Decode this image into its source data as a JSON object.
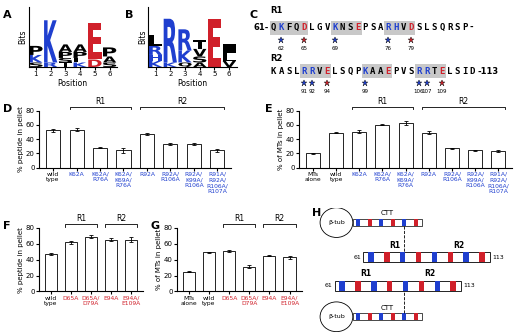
{
  "chart_data": [
    {
      "panel": "A",
      "type": "logo",
      "x_label": "Position",
      "y_label": "Bits",
      "x": [
        1,
        2,
        3,
        4,
        5,
        6
      ],
      "xlim": [
        0.5,
        6.5
      ],
      "xticks": [
        1,
        2,
        3,
        4,
        5,
        6
      ],
      "ylim": [
        0,
        4
      ],
      "tick_labels": "x",
      "stacks": [
        [
          {
            "letter": "P",
            "bits": 0.6
          },
          {
            "letter": "K",
            "bits": 0.5
          },
          {
            "letter": "S",
            "bits": 0.3
          }
        ],
        [
          {
            "letter": "K",
            "bits": 2.8
          },
          {
            "letter": "R",
            "bits": 0.3
          }
        ],
        [
          {
            "letter": "A",
            "bits": 0.5
          },
          {
            "letter": "P",
            "bits": 0.4
          },
          {
            "letter": "S",
            "bits": 0.3
          },
          {
            "letter": "T",
            "bits": 0.3
          }
        ],
        [
          {
            "letter": "A",
            "bits": 0.5
          },
          {
            "letter": "P",
            "bits": 0.4
          },
          {
            "letter": "L",
            "bits": 0.3
          },
          {
            "letter": "K",
            "bits": 0.3
          }
        ],
        [
          {
            "letter": "E",
            "bits": 2.4
          },
          {
            "letter": "D",
            "bits": 0.5
          }
        ],
        [
          {
            "letter": "P",
            "bits": 0.6
          },
          {
            "letter": "A",
            "bits": 0.4
          },
          {
            "letter": "S",
            "bits": 0.3
          }
        ]
      ]
    },
    {
      "panel": "B",
      "type": "logo",
      "x_label": "Position",
      "y_label": "Bits",
      "x": [
        1,
        2,
        3,
        4,
        5,
        6
      ],
      "xlim": [
        0.5,
        6.5
      ],
      "xticks": [
        1,
        2,
        3,
        4,
        5,
        6
      ],
      "ylim": [
        0,
        4
      ],
      "tick_labels": "x",
      "stacks": [
        [
          {
            "letter": "L",
            "bits": 0.7
          },
          {
            "letter": "R",
            "bits": 0.6
          },
          {
            "letter": "H",
            "bits": 0.4
          },
          {
            "letter": "K",
            "bits": 0.4
          }
        ],
        [
          {
            "letter": "R",
            "bits": 2.9
          },
          {
            "letter": "K",
            "bits": 0.3
          }
        ],
        [
          {
            "letter": "R",
            "bits": 1.4
          },
          {
            "letter": "K",
            "bits": 0.8
          },
          {
            "letter": "Q",
            "bits": 0.3
          }
        ],
        [
          {
            "letter": "T",
            "bits": 0.6
          },
          {
            "letter": "V",
            "bits": 0.5
          },
          {
            "letter": "S",
            "bits": 0.4
          },
          {
            "letter": "A",
            "bits": 0.3
          }
        ],
        [
          {
            "letter": "E",
            "bits": 3.2
          }
        ],
        [
          {
            "letter": "I",
            "bits": 0.6
          },
          {
            "letter": "L",
            "bits": 0.5
          },
          {
            "letter": "V",
            "bits": 0.4
          }
        ]
      ]
    },
    {
      "panel": "D",
      "type": "bar",
      "y_label": "% peptide in pellet",
      "color": "#ffffff",
      "categories": [
        "wild type",
        "K62A",
        "K62A/R76A",
        "K62A/K69A/R76A",
        "R92A",
        "R92A/R106A",
        "R92A/K99A/R106A",
        "R91A/R92A/R106A/R107A"
      ],
      "values": [
        52,
        53,
        28,
        24,
        47,
        33,
        33,
        24
      ],
      "errors": [
        2,
        2,
        1,
        3,
        1,
        1,
        1,
        2
      ],
      "ylim": [
        0,
        80
      ],
      "yticks": [
        0,
        20,
        40,
        60,
        80
      ],
      "brackets": [
        {
          "label": "R1",
          "from": "K62A",
          "to": "K62A/K69A/R76A"
        },
        {
          "label": "R2",
          "from": "R92A",
          "to": "R91A/R92A/R106A/R107A"
        }
      ]
    },
    {
      "panel": "E",
      "type": "bar",
      "y_label": "% of MTs in pellet",
      "color": "#ffffff",
      "categories": [
        "MTs alone",
        "wild type",
        "K62A",
        "K62A/R76A",
        "K62A/K69A/R76A",
        "R92A",
        "R92A/R106A",
        "R92A/K99A/R106A",
        "R91A/R92A/R106A/R107A"
      ],
      "values": [
        20,
        49,
        50,
        60,
        63,
        49,
        27,
        24,
        23
      ],
      "errors": [
        1,
        1,
        2,
        1,
        3,
        2,
        1,
        1,
        1
      ],
      "ylim": [
        0,
        80
      ],
      "yticks": [
        0,
        20,
        40,
        60,
        80
      ],
      "brackets": [
        {
          "label": "R1",
          "from": "K62A",
          "to": "K62A/K69A/R76A"
        },
        {
          "label": "R2",
          "from": "R92A",
          "to": "R91A/R92A/R106A/R107A"
        }
      ]
    },
    {
      "panel": "F",
      "type": "bar",
      "y_label": "% peptide in pellet",
      "color": "#ffffff",
      "categories": [
        "wild type",
        "D65A",
        "D65A/D79A",
        "E94A",
        "E94A/E109A"
      ],
      "values": [
        47,
        62,
        69,
        65,
        65
      ],
      "errors": [
        1,
        2,
        2,
        2,
        3
      ],
      "ylim": [
        0,
        80
      ],
      "yticks": [
        0,
        20,
        40,
        60,
        80
      ],
      "brackets": [
        {
          "label": "R1",
          "from": "D65A",
          "to": "D65A/D79A"
        },
        {
          "label": "R2",
          "from": "E94A",
          "to": "E94A/E109A"
        }
      ]
    },
    {
      "panel": "G",
      "type": "bar",
      "y_label": "% of MTs in pellet",
      "color": "#ffffff",
      "categories": [
        "MTs alone",
        "wild type",
        "D65A",
        "D65A/D79A",
        "E94A",
        "E94A/E109A"
      ],
      "values": [
        25,
        49,
        51,
        31,
        45,
        43
      ],
      "errors": [
        1,
        1,
        1,
        2,
        1,
        2
      ],
      "ylim": [
        0,
        80
      ],
      "yticks": [
        0,
        20,
        40,
        60,
        80
      ],
      "brackets": [
        {
          "label": "R1",
          "from": "D65A",
          "to": "D65A/D79A"
        },
        {
          "label": "R2",
          "from": "E94A",
          "to": "E94A/E109A"
        }
      ]
    }
  ],
  "sequence": {
    "panel": "C",
    "lines": [
      {
        "label": "R1",
        "prefix": "61-",
        "suffix": "-",
        "segments": [
          {
            "text": "QKFQD",
            "boxed": true
          },
          {
            "text": "LGV",
            "boxed": false
          },
          {
            "text": "KNSE",
            "boxed": true
          },
          {
            "text": "PSA",
            "boxed": false
          },
          {
            "text": "RHVD",
            "boxed": true
          },
          {
            "text": "SLSQRSP",
            "boxed": false
          }
        ],
        "stars": [
          62,
          65,
          69,
          76,
          79
        ]
      },
      {
        "label": "R2",
        "prefix": "",
        "suffix": "-113",
        "segments": [
          {
            "text": "KASL",
            "boxed": false
          },
          {
            "text": "RRVE",
            "boxed": true
          },
          {
            "text": "LSQP",
            "boxed": false
          },
          {
            "text": "KAAE",
            "boxed": true
          },
          {
            "text": "PVS",
            "boxed": false
          },
          {
            "text": "RRTE",
            "boxed": true
          },
          {
            "text": "LSID",
            "boxed": false
          }
        ],
        "stars": [
          91,
          92,
          94,
          99,
          106,
          107,
          109
        ]
      }
    ]
  },
  "diagram": {
    "panel": "H",
    "tubulins": [
      {
        "label": "β-tub",
        "tail": "CTT"
      },
      {
        "label": "β-tub",
        "tail": "CTT"
      }
    ],
    "molecules": [
      {
        "start": "61",
        "end": "113",
        "regions": [
          "R1",
          "R2"
        ]
      },
      {
        "start": "61",
        "end": "113",
        "regions": [
          "R1",
          "R2"
        ]
      }
    ]
  }
}
